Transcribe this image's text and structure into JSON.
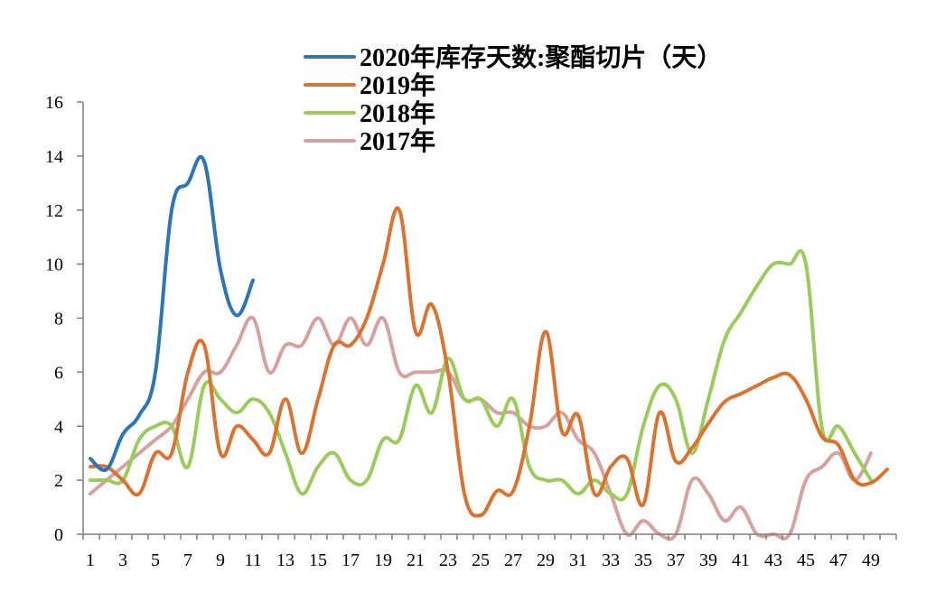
{
  "chart_data": {
    "type": "line",
    "title": "",
    "xlabel": "",
    "ylabel": "",
    "xlim": [
      1,
      50
    ],
    "ylim": [
      0,
      16
    ],
    "y_ticks": [
      0,
      2,
      4,
      6,
      8,
      10,
      12,
      14,
      16
    ],
    "x_ticks": [
      1,
      3,
      5,
      7,
      9,
      11,
      13,
      15,
      17,
      19,
      21,
      23,
      25,
      27,
      29,
      31,
      33,
      35,
      37,
      39,
      41,
      43,
      45,
      47,
      49
    ],
    "grid": false,
    "legend_position": "top-center",
    "series": [
      {
        "name": "2020年库存天数:聚酯切片（天）",
        "color": "#2e75b6",
        "points": [
          [
            1,
            2.8
          ],
          [
            2,
            2.4
          ],
          [
            3,
            3.7
          ],
          [
            4,
            4.4
          ],
          [
            5,
            6
          ],
          [
            6,
            12
          ],
          [
            7,
            13
          ],
          [
            8,
            13.8
          ],
          [
            9,
            9.8
          ],
          [
            10,
            8.1
          ],
          [
            11,
            9.4
          ]
        ]
      },
      {
        "name": "2019年",
        "color": "#d9732f",
        "points": [
          [
            1,
            2.5
          ],
          [
            2,
            2.5
          ],
          [
            3,
            2
          ],
          [
            4,
            1.5
          ],
          [
            5,
            3
          ],
          [
            6,
            3
          ],
          [
            7,
            6
          ],
          [
            8,
            7
          ],
          [
            9,
            3
          ],
          [
            10,
            4
          ],
          [
            11,
            3.5
          ],
          [
            12,
            3
          ],
          [
            13,
            5
          ],
          [
            14,
            3
          ],
          [
            15,
            5
          ],
          [
            16,
            7
          ],
          [
            17,
            7
          ],
          [
            18,
            8
          ],
          [
            19,
            10
          ],
          [
            20,
            12
          ],
          [
            21,
            7.5
          ],
          [
            22,
            8.5
          ],
          [
            23,
            6
          ],
          [
            24,
            1.5
          ],
          [
            25,
            0.7
          ],
          [
            26,
            1.6
          ],
          [
            27,
            1.6
          ],
          [
            28,
            4
          ],
          [
            29,
            7.5
          ],
          [
            30,
            3.8
          ],
          [
            31,
            4.4
          ],
          [
            32,
            1.5
          ],
          [
            33,
            2.5
          ],
          [
            34,
            2.8
          ],
          [
            35,
            1.1
          ],
          [
            36,
            4.5
          ],
          [
            37,
            2.7
          ],
          [
            38,
            3.2
          ],
          [
            39,
            4.1
          ],
          [
            40,
            4.9
          ],
          [
            41,
            5.2
          ],
          [
            42,
            5.5
          ],
          [
            43,
            5.8
          ],
          [
            44,
            5.9
          ],
          [
            45,
            5
          ],
          [
            46,
            3.6
          ],
          [
            47,
            3.3
          ],
          [
            48,
            2
          ],
          [
            49,
            1.9
          ],
          [
            50,
            2.4
          ]
        ]
      },
      {
        "name": "2018年",
        "color": "#9bcb5c",
        "points": [
          [
            1,
            2
          ],
          [
            2,
            2
          ],
          [
            3,
            2
          ],
          [
            4,
            3.5
          ],
          [
            5,
            4
          ],
          [
            6,
            4
          ],
          [
            7,
            2.5
          ],
          [
            8,
            5.5
          ],
          [
            9,
            5
          ],
          [
            10,
            4.5
          ],
          [
            11,
            5
          ],
          [
            12,
            4.5
          ],
          [
            13,
            3
          ],
          [
            14,
            1.5
          ],
          [
            15,
            2.5
          ],
          [
            16,
            3
          ],
          [
            17,
            2
          ],
          [
            18,
            2
          ],
          [
            19,
            3.5
          ],
          [
            20,
            3.5
          ],
          [
            21,
            5.5
          ],
          [
            22,
            4.5
          ],
          [
            23,
            6.5
          ],
          [
            24,
            5
          ],
          [
            25,
            5
          ],
          [
            26,
            4
          ],
          [
            27,
            5
          ],
          [
            28,
            2.5
          ],
          [
            29,
            2
          ],
          [
            30,
            2
          ],
          [
            31,
            1.5
          ],
          [
            32,
            2
          ],
          [
            33,
            1.5
          ],
          [
            34,
            1.5
          ],
          [
            35,
            4
          ],
          [
            36,
            5.5
          ],
          [
            37,
            5
          ],
          [
            38,
            3
          ],
          [
            39,
            5
          ],
          [
            40,
            7.2
          ],
          [
            41,
            8.2
          ],
          [
            42,
            9.2
          ],
          [
            43,
            10
          ],
          [
            44,
            10
          ],
          [
            45,
            10
          ],
          [
            46,
            3.9
          ],
          [
            47,
            4
          ],
          [
            48,
            3
          ],
          [
            49,
            2
          ]
        ]
      },
      {
        "name": "2017年",
        "color": "#d4a3a0",
        "points": [
          [
            1,
            1.5
          ],
          [
            2,
            2
          ],
          [
            3,
            2.5
          ],
          [
            4,
            3
          ],
          [
            5,
            3.5
          ],
          [
            6,
            4
          ],
          [
            7,
            5
          ],
          [
            8,
            6
          ],
          [
            9,
            6
          ],
          [
            10,
            7
          ],
          [
            11,
            8
          ],
          [
            12,
            6
          ],
          [
            13,
            7
          ],
          [
            14,
            7
          ],
          [
            15,
            8
          ],
          [
            16,
            7
          ],
          [
            17,
            8
          ],
          [
            18,
            7
          ],
          [
            19,
            8
          ],
          [
            20,
            6
          ],
          [
            21,
            6
          ],
          [
            22,
            6
          ],
          [
            23,
            6
          ],
          [
            24,
            5
          ],
          [
            25,
            5
          ],
          [
            26,
            4.5
          ],
          [
            27,
            4.5
          ],
          [
            28,
            4
          ],
          [
            29,
            4
          ],
          [
            30,
            4.5
          ],
          [
            31,
            3.5
          ],
          [
            32,
            3
          ],
          [
            33,
            1.5
          ],
          [
            34,
            0
          ],
          [
            35,
            0.5
          ],
          [
            36,
            0
          ],
          [
            37,
            0
          ],
          [
            38,
            2
          ],
          [
            39,
            1.5
          ],
          [
            40,
            0.5
          ],
          [
            41,
            1
          ],
          [
            42,
            0
          ],
          [
            43,
            0
          ],
          [
            44,
            0
          ],
          [
            45,
            2
          ],
          [
            46,
            2.5
          ],
          [
            47,
            3
          ],
          [
            48,
            2
          ],
          [
            49,
            3
          ]
        ]
      }
    ]
  }
}
